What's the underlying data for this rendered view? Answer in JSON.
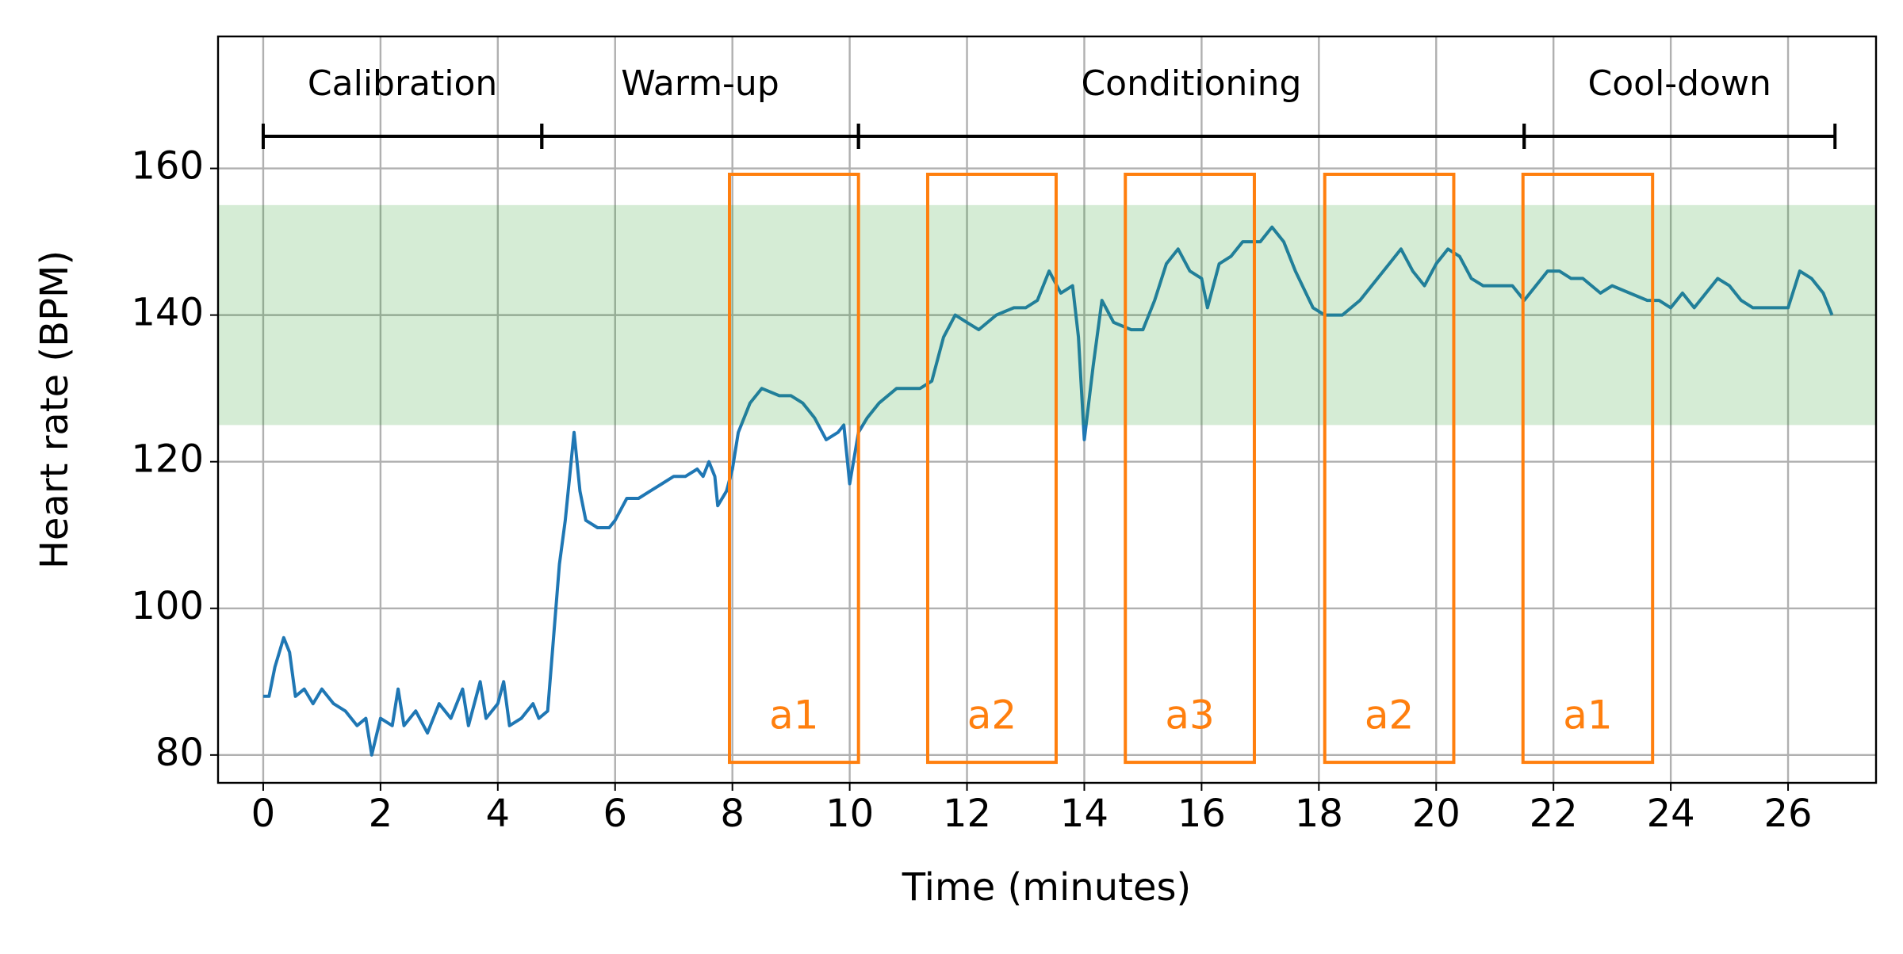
{
  "chart_data": {
    "type": "line",
    "xlabel": "Time (minutes)",
    "ylabel": "Heart rate (BPM)",
    "xlim": [
      -0.77,
      27.5
    ],
    "ylim": [
      76.2,
      178
    ],
    "xticks": [
      0,
      2,
      4,
      6,
      8,
      10,
      12,
      14,
      16,
      18,
      20,
      22,
      24,
      26
    ],
    "yticks": [
      80,
      100,
      120,
      140,
      160
    ],
    "grid": true,
    "color": "#1f77b4",
    "target_zone": [
      125,
      155
    ],
    "target_zone_color": "#2ca02c",
    "box_color": "#ff7f0e",
    "phases": [
      {
        "label": "Calibration",
        "start": 0,
        "end": 4.75
      },
      {
        "label": "Warm-up",
        "start": 4.75,
        "end": 10.15
      },
      {
        "label": "Conditioning",
        "start": 10.15,
        "end": 21.5
      },
      {
        "label": "Cool-down",
        "start": 21.5,
        "end": 26.8
      }
    ],
    "boxes": [
      {
        "label": "a1",
        "start": 7.95,
        "end": 10.15,
        "low": 79,
        "high": 159.2
      },
      {
        "label": "a2",
        "start": 11.33,
        "end": 13.52,
        "low": 79,
        "high": 159.2
      },
      {
        "label": "a3",
        "start": 14.7,
        "end": 16.9,
        "low": 79,
        "high": 159.2
      },
      {
        "label": "a2",
        "start": 18.1,
        "end": 20.3,
        "low": 79,
        "high": 159.2
      },
      {
        "label": "a1",
        "start": 21.48,
        "end": 23.69,
        "low": 79,
        "high": 159.2
      }
    ],
    "x": [
      0,
      0.1,
      0.2,
      0.35,
      0.45,
      0.55,
      0.7,
      0.85,
      1.0,
      1.2,
      1.4,
      1.6,
      1.75,
      1.85,
      2.0,
      2.2,
      2.3,
      2.4,
      2.6,
      2.8,
      3.0,
      3.2,
      3.4,
      3.5,
      3.7,
      3.8,
      4.0,
      4.1,
      4.2,
      4.4,
      4.6,
      4.7,
      4.85,
      4.95,
      5.05,
      5.15,
      5.25,
      5.3,
      5.4,
      5.5,
      5.7,
      5.9,
      6.0,
      6.2,
      6.4,
      6.6,
      6.8,
      7.0,
      7.2,
      7.4,
      7.5,
      7.6,
      7.7,
      7.75,
      7.9,
      8.0,
      8.1,
      8.3,
      8.5,
      8.8,
      9.0,
      9.2,
      9.4,
      9.6,
      9.8,
      9.9,
      10.0,
      10.15,
      10.3,
      10.5,
      10.8,
      11.0,
      11.2,
      11.4,
      11.6,
      11.8,
      12.0,
      12.2,
      12.5,
      12.8,
      13.0,
      13.2,
      13.4,
      13.6,
      13.8,
      13.9,
      14.0,
      14.15,
      14.3,
      14.5,
      14.8,
      15.0,
      15.2,
      15.4,
      15.6,
      15.8,
      16.0,
      16.1,
      16.3,
      16.5,
      16.7,
      17.0,
      17.2,
      17.4,
      17.6,
      17.9,
      18.1,
      18.4,
      18.7,
      19.0,
      19.2,
      19.4,
      19.6,
      19.8,
      20.0,
      20.2,
      20.4,
      20.6,
      20.8,
      21.0,
      21.3,
      21.5,
      21.7,
      21.9,
      22.1,
      22.3,
      22.5,
      22.8,
      23.0,
      23.3,
      23.6,
      23.8,
      24.0,
      24.2,
      24.4,
      24.6,
      24.8,
      25.0,
      25.2,
      25.4,
      25.6,
      25.8,
      26.0,
      26.2,
      26.4,
      26.6,
      26.75
    ],
    "values": [
      88,
      88,
      92,
      96,
      94,
      88,
      89,
      87,
      89,
      87,
      86,
      84,
      85,
      80,
      85,
      84,
      89,
      84,
      86,
      83,
      87,
      85,
      89,
      84,
      90,
      85,
      87,
      90,
      84,
      85,
      87,
      85,
      86,
      96,
      106,
      112,
      120,
      124,
      116,
      112,
      111,
      111,
      112,
      115,
      115,
      116,
      117,
      118,
      118,
      119,
      118,
      120,
      118,
      114,
      116,
      119,
      124,
      128,
      130,
      129,
      129,
      128,
      126,
      123,
      124,
      125,
      117,
      124,
      126,
      128,
      130,
      130,
      130,
      131,
      137,
      140,
      139,
      138,
      140,
      141,
      141,
      142,
      146,
      143,
      144,
      137,
      123,
      133,
      142,
      139,
      138,
      138,
      142,
      147,
      149,
      146,
      145,
      141,
      147,
      148,
      150,
      150,
      152,
      150,
      146,
      141,
      140,
      140,
      142,
      145,
      147,
      149,
      146,
      144,
      147,
      149,
      148,
      145,
      144,
      144,
      144,
      142,
      144,
      146,
      146,
      145,
      145,
      143,
      144,
      143,
      142,
      142,
      141,
      143,
      141,
      143,
      145,
      144,
      142,
      141,
      141,
      141,
      141,
      146,
      145,
      143,
      140
    ]
  }
}
